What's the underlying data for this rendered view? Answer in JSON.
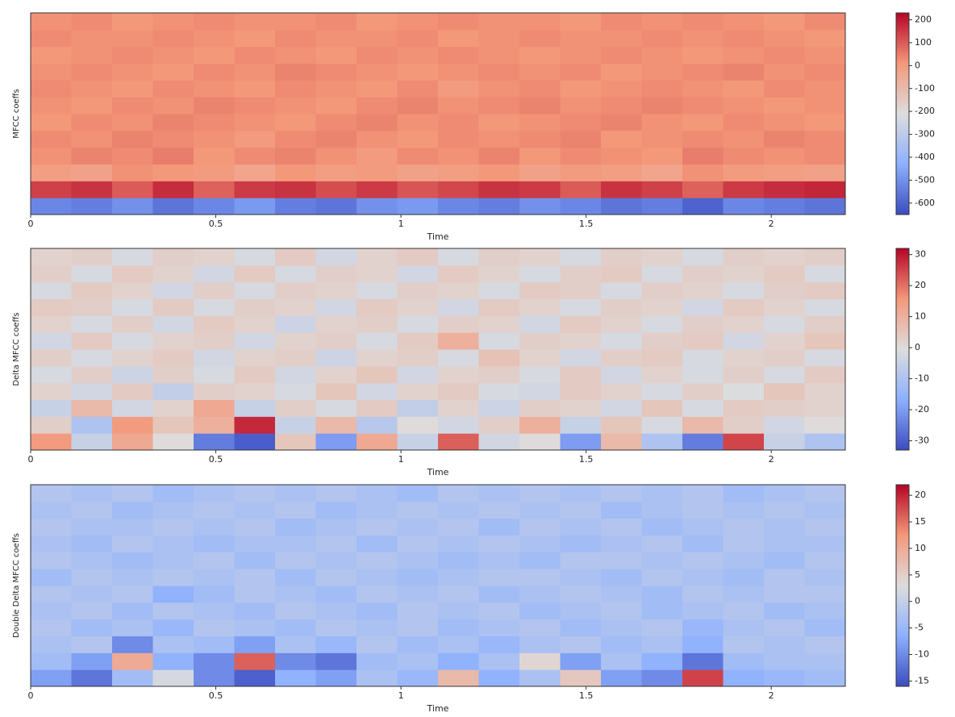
{
  "chart_data": [
    {
      "type": "heatmap",
      "ylabel": "MFCC coeffs",
      "xlabel": "Time",
      "colormap": "coolwarm",
      "x": [
        0.055,
        0.165,
        0.275,
        0.385,
        0.495,
        0.605,
        0.715,
        0.825,
        0.935,
        1.045,
        1.155,
        1.265,
        1.375,
        1.485,
        1.595,
        1.705,
        1.815,
        1.925,
        2.035,
        2.145
      ],
      "xlim": [
        0,
        2.2
      ],
      "xticks": [
        0,
        0.5,
        1,
        1.5,
        2
      ],
      "clim": [
        -650,
        230
      ],
      "cticks": [
        200,
        100,
        0,
        -100,
        -200,
        -300,
        -400,
        -500,
        -600
      ],
      "values": [
        [
          -520,
          -540,
          -500,
          -560,
          -520,
          -480,
          -540,
          -560,
          -500,
          -480,
          -520,
          -540,
          -500,
          -520,
          -560,
          -540,
          -600,
          -520,
          -540,
          -560
        ],
        [
          140,
          160,
          100,
          170,
          90,
          150,
          160,
          120,
          150,
          110,
          130,
          160,
          150,
          100,
          160,
          140,
          90,
          150,
          170,
          180
        ],
        [
          -10,
          -20,
          20,
          10,
          0,
          -30,
          10,
          -10,
          0,
          -20,
          -10,
          10,
          -20,
          0,
          -10,
          -30,
          20,
          0,
          -10,
          -20
        ],
        [
          20,
          40,
          30,
          50,
          10,
          30,
          40,
          20,
          0,
          30,
          20,
          40,
          10,
          30,
          20,
          10,
          50,
          30,
          20,
          30
        ],
        [
          30,
          20,
          40,
          30,
          20,
          0,
          30,
          40,
          20,
          10,
          30,
          20,
          30,
          40,
          10,
          20,
          30,
          20,
          40,
          30
        ],
        [
          10,
          30,
          20,
          40,
          30,
          20,
          10,
          30,
          40,
          20,
          30,
          10,
          20,
          30,
          40,
          20,
          10,
          30,
          20,
          10
        ],
        [
          20,
          10,
          30,
          20,
          40,
          30,
          20,
          10,
          30,
          40,
          20,
          30,
          40,
          20,
          30,
          40,
          30,
          20,
          10,
          20
        ],
        [
          30,
          20,
          10,
          30,
          20,
          10,
          30,
          20,
          10,
          30,
          0,
          20,
          30,
          10,
          20,
          30,
          20,
          10,
          30,
          20
        ],
        [
          20,
          30,
          20,
          10,
          30,
          20,
          40,
          30,
          20,
          10,
          20,
          30,
          20,
          30,
          10,
          20,
          30,
          40,
          20,
          30
        ],
        [
          10,
          20,
          30,
          20,
          10,
          30,
          20,
          10,
          30,
          20,
          30,
          20,
          10,
          20,
          30,
          20,
          10,
          20,
          30,
          20
        ],
        [
          30,
          20,
          20,
          30,
          20,
          10,
          30,
          20,
          20,
          30,
          10,
          20,
          30,
          20,
          20,
          30,
          20,
          30,
          20,
          10
        ],
        [
          20,
          30,
          10,
          20,
          30,
          20,
          20,
          30,
          10,
          20,
          30,
          20,
          20,
          10,
          30,
          20,
          30,
          20,
          10,
          30
        ]
      ]
    },
    {
      "type": "heatmap",
      "ylabel": "Delta MFCC coeffs",
      "xlabel": "Time",
      "colormap": "coolwarm",
      "x": [
        0.055,
        0.165,
        0.275,
        0.385,
        0.495,
        0.605,
        0.715,
        0.825,
        0.935,
        1.045,
        1.155,
        1.265,
        1.375,
        1.485,
        1.595,
        1.705,
        1.815,
        1.925,
        2.035,
        2.145
      ],
      "xlim": [
        0,
        2.2
      ],
      "xticks": [
        0,
        0.5,
        1,
        1.5,
        2
      ],
      "clim": [
        -33,
        32
      ],
      "cticks": [
        30,
        20,
        10,
        0,
        -10,
        -20,
        -30
      ],
      "values": [
        [
          15,
          -5,
          12,
          0,
          -25,
          -30,
          5,
          -20,
          12,
          -5,
          22,
          -3,
          0,
          -20,
          8,
          -10,
          -25,
          25,
          -5,
          -10
        ],
        [
          3,
          -10,
          15,
          5,
          10,
          28,
          -5,
          8,
          -8,
          0,
          -3,
          3,
          10,
          -5,
          5,
          -2,
          8,
          3,
          -3,
          0
        ],
        [
          -5,
          8,
          -3,
          2,
          12,
          -5,
          3,
          -2,
          4,
          -6,
          2,
          -4,
          3,
          2,
          -3,
          5,
          -2,
          4,
          3,
          2
        ],
        [
          2,
          -3,
          4,
          -6,
          3,
          2,
          -2,
          5,
          -3,
          2,
          4,
          -2,
          -3,
          4,
          2,
          -2,
          3,
          -1,
          5,
          2
        ],
        [
          -2,
          3,
          -4,
          3,
          -2,
          4,
          -3,
          2,
          5,
          -3,
          2,
          3,
          -2,
          4,
          -3,
          2,
          -2,
          3,
          -2,
          4
        ],
        [
          3,
          -2,
          2,
          4,
          -3,
          2,
          3,
          -4,
          2,
          3,
          -2,
          6,
          2,
          -3,
          3,
          4,
          -2,
          2,
          3,
          -2
        ],
        [
          -3,
          4,
          -2,
          2,
          3,
          -3,
          2,
          3,
          -2,
          4,
          10,
          -2,
          3,
          2,
          -2,
          3,
          4,
          -3,
          2,
          5
        ],
        [
          2,
          -2,
          3,
          -3,
          4,
          2,
          -4,
          2,
          3,
          -2,
          3,
          2,
          -3,
          4,
          2,
          -2,
          3,
          2,
          -2,
          3
        ],
        [
          4,
          3,
          -2,
          4,
          -2,
          3,
          2,
          -3,
          4,
          2,
          -3,
          4,
          2,
          -2,
          3,
          2,
          -3,
          4,
          2,
          -2
        ],
        [
          -2,
          4,
          2,
          -3,
          3,
          -2,
          3,
          2,
          -2,
          3,
          2,
          -2,
          4,
          3,
          -2,
          3,
          2,
          -2,
          3,
          4
        ],
        [
          3,
          -2,
          4,
          2,
          -3,
          4,
          -2,
          3,
          2,
          -3,
          4,
          2,
          -2,
          3,
          4,
          -2,
          3,
          2,
          4,
          -2
        ],
        [
          2,
          3,
          -2,
          3,
          2,
          -2,
          4,
          -3,
          2,
          4,
          -2,
          3,
          2,
          -2,
          3,
          2,
          -2,
          3,
          2,
          3
        ]
      ]
    },
    {
      "type": "heatmap",
      "ylabel": "Double Delta MFCC coeffs",
      "xlabel": "Time",
      "colormap": "coolwarm",
      "x": [
        0.055,
        0.165,
        0.275,
        0.385,
        0.495,
        0.605,
        0.715,
        0.825,
        0.935,
        1.045,
        1.155,
        1.265,
        1.375,
        1.485,
        1.595,
        1.705,
        1.815,
        1.925,
        2.035,
        2.145
      ],
      "xlim": [
        0,
        2.2
      ],
      "xticks": [
        0,
        0.5,
        1,
        1.5,
        2
      ],
      "clim": [
        -16,
        22
      ],
      "cticks": [
        20,
        15,
        10,
        5,
        0,
        -5,
        -10,
        -15
      ],
      "values": [
        [
          -8,
          -12,
          -4,
          2,
          -10,
          -14,
          -6,
          -8,
          -3,
          -5,
          8,
          -6,
          -3,
          6,
          -8,
          -10,
          18,
          -6,
          -5,
          -4
        ],
        [
          -4,
          -8,
          10,
          -6,
          -10,
          16,
          -10,
          -12,
          -4,
          -3,
          -6,
          -3,
          4,
          -8,
          -3,
          -6,
          -12,
          -4,
          -3,
          -3
        ],
        [
          -3,
          -2,
          -10,
          -3,
          -4,
          -8,
          -3,
          -5,
          -2,
          -4,
          -3,
          -5,
          -3,
          -2,
          -4,
          -3,
          -6,
          -2,
          -3,
          -2
        ],
        [
          -2,
          -4,
          -3,
          -5,
          -2,
          -3,
          -4,
          -2,
          -3,
          -2,
          -4,
          -3,
          -2,
          -4,
          -3,
          -2,
          -5,
          -3,
          -2,
          -4
        ],
        [
          -3,
          -2,
          -4,
          -2,
          -3,
          -4,
          -2,
          -3,
          -4,
          -2,
          -3,
          -2,
          -4,
          -3,
          -2,
          -4,
          -3,
          -2,
          -4,
          -3
        ],
        [
          -2,
          -3,
          -2,
          -6,
          -4,
          -2,
          -3,
          -4,
          -2,
          -3,
          -2,
          -4,
          -3,
          -2,
          -3,
          -4,
          -2,
          -3,
          -2,
          -2
        ],
        [
          -4,
          -2,
          -3,
          -2,
          -3,
          -2,
          -4,
          -2,
          -3,
          -4,
          -3,
          -2,
          -2,
          -3,
          -4,
          -2,
          -3,
          -4,
          -2,
          -3
        ],
        [
          -2,
          -3,
          -4,
          -3,
          -2,
          -4,
          -2,
          -3,
          -2,
          -3,
          -4,
          -3,
          -4,
          -2,
          -2,
          -3,
          -2,
          -3,
          -4,
          -2
        ],
        [
          -3,
          -4,
          -2,
          -3,
          -4,
          -3,
          -3,
          -2,
          -4,
          -2,
          -3,
          -2,
          -3,
          -4,
          -3,
          -2,
          -4,
          -2,
          -3,
          -3
        ],
        [
          -2,
          -3,
          -3,
          -2,
          -3,
          -2,
          -4,
          -3,
          -2,
          -3,
          -2,
          -4,
          -2,
          -3,
          -2,
          -4,
          -3,
          -2,
          -3,
          -2
        ],
        [
          -3,
          -2,
          -4,
          -3,
          -2,
          -3,
          -2,
          -4,
          -3,
          -2,
          -3,
          -2,
          -3,
          -2,
          -4,
          -3,
          -2,
          -3,
          -2,
          -3
        ],
        [
          -2,
          -3,
          -2,
          -4,
          -3,
          -2,
          -3,
          -2,
          -3,
          -4,
          -2,
          -3,
          -2,
          -3,
          -2,
          -3,
          -2,
          -4,
          -3,
          -2
        ]
      ]
    }
  ]
}
